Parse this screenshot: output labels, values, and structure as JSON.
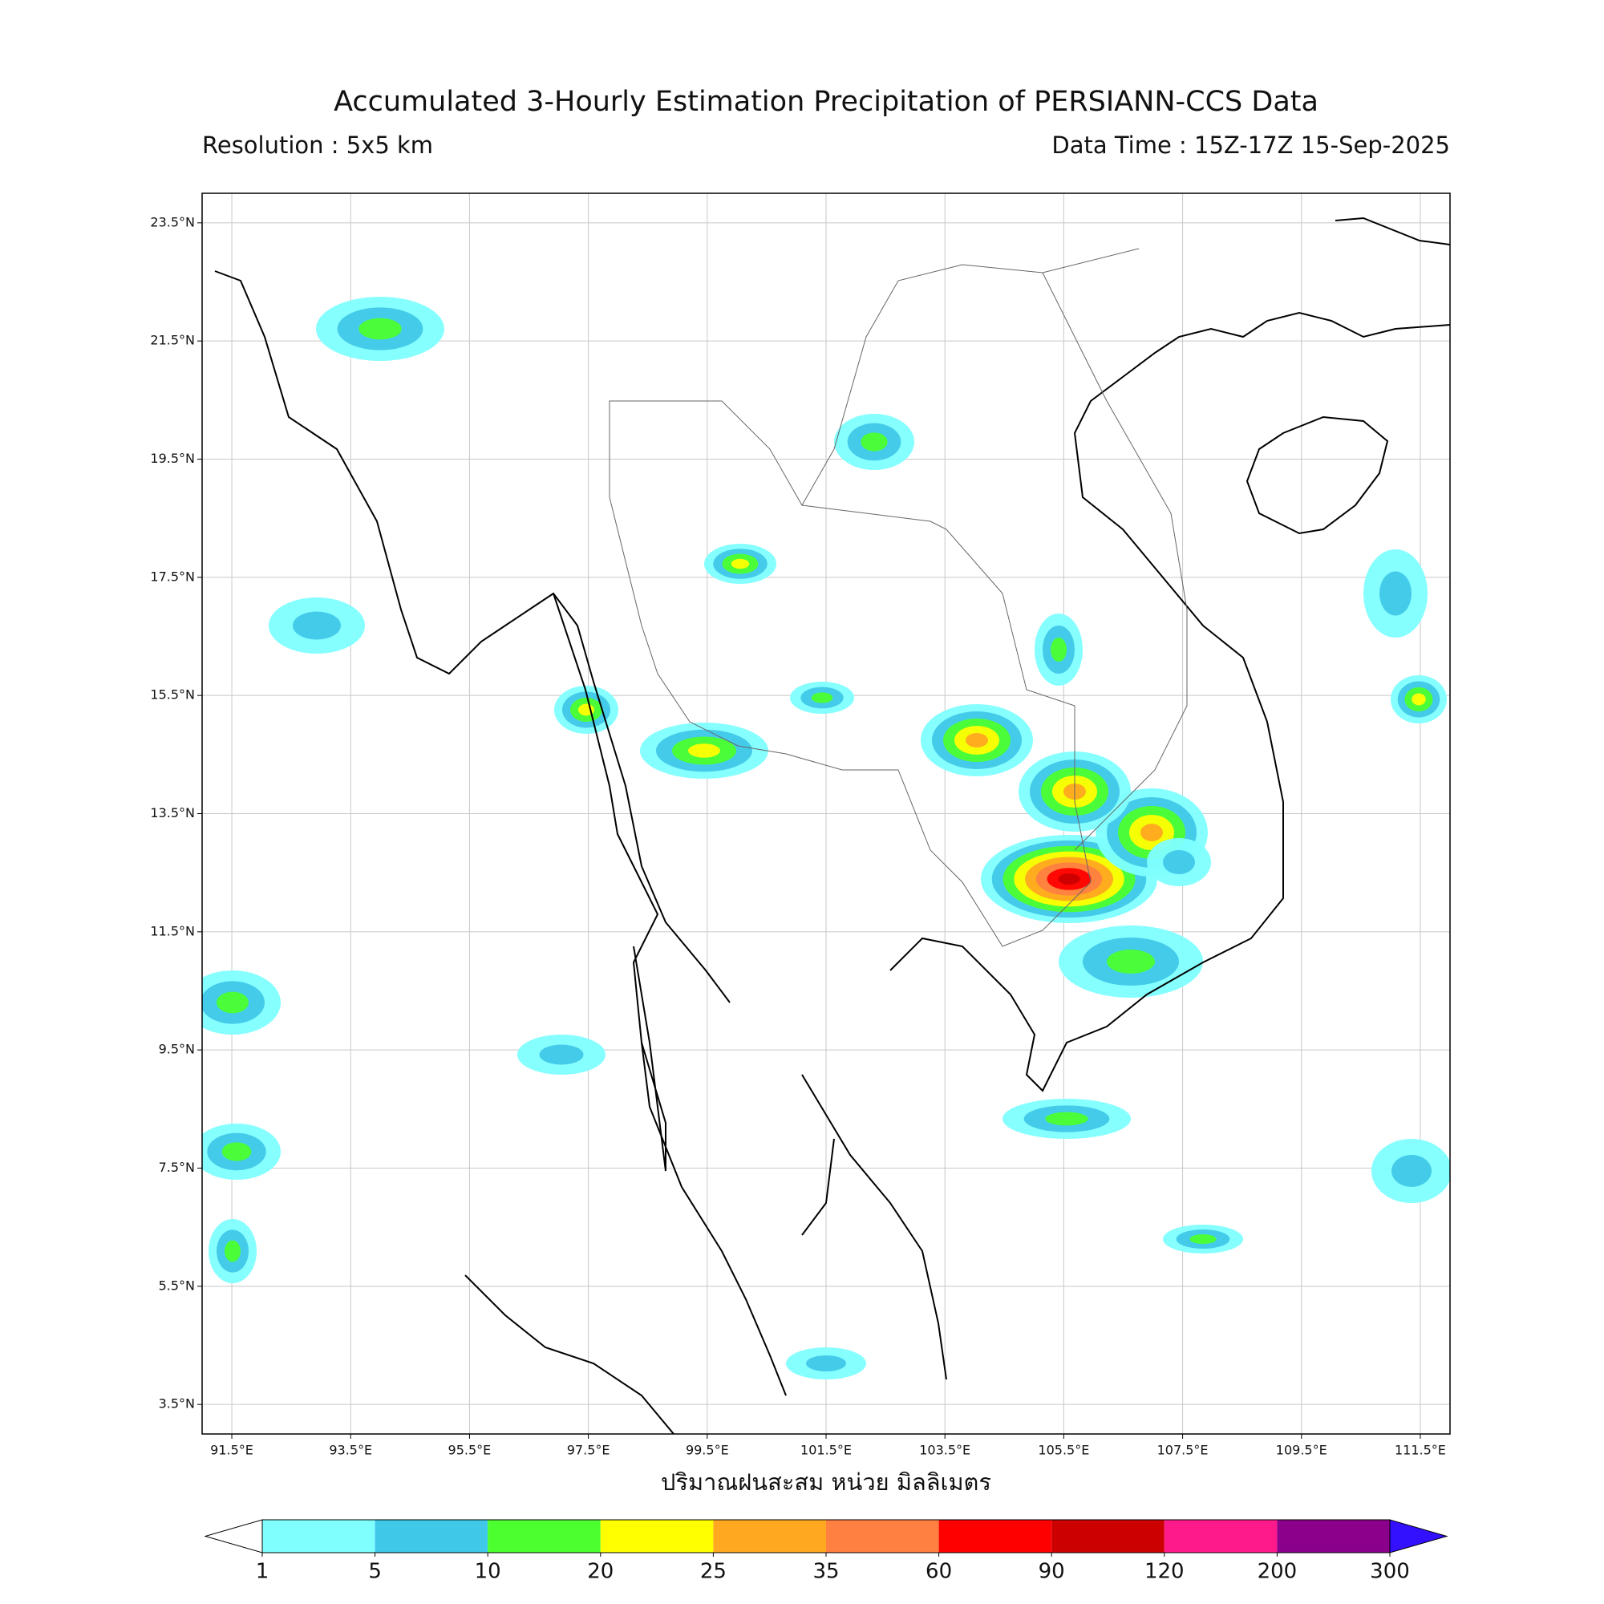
{
  "header": {
    "title": "Accumulated 3-Hourly Estimation Precipitation of PERSIANN-CCS Data",
    "resolution": "Resolution : 5x5 km",
    "data_time": "Data Time : 15Z-17Z 15-Sep-2025"
  },
  "map": {
    "lon_lim": [
      91.0,
      112.0
    ],
    "lat_lim": [
      3.0,
      24.0
    ],
    "lat_ticks": [
      {
        "value": 23.5,
        "label": "23.5°N"
      },
      {
        "value": 21.5,
        "label": "21.5°N"
      },
      {
        "value": 19.5,
        "label": "19.5°N"
      },
      {
        "value": 17.5,
        "label": "17.5°N"
      },
      {
        "value": 15.5,
        "label": "15.5°N"
      },
      {
        "value": 13.5,
        "label": "13.5°N"
      },
      {
        "value": 11.5,
        "label": "11.5°N"
      },
      {
        "value": 9.5,
        "label": "9.5°N"
      },
      {
        "value": 7.5,
        "label": "7.5°N"
      },
      {
        "value": 5.5,
        "label": "5.5°N"
      },
      {
        "value": 3.5,
        "label": "3.5°N"
      }
    ],
    "lon_ticks": [
      {
        "value": 91.5,
        "label": "91.5°E"
      },
      {
        "value": 93.5,
        "label": "93.5°E"
      },
      {
        "value": 95.5,
        "label": "95.5°E"
      },
      {
        "value": 97.5,
        "label": "97.5°E"
      },
      {
        "value": 99.5,
        "label": "99.5°E"
      },
      {
        "value": 101.5,
        "label": "101.5°E"
      },
      {
        "value": 103.5,
        "label": "103.5°E"
      },
      {
        "value": 105.5,
        "label": "105.5°E"
      },
      {
        "value": 107.5,
        "label": "107.5°E"
      },
      {
        "value": 109.5,
        "label": "109.5°E"
      },
      {
        "value": 111.5,
        "label": "111.5°E"
      }
    ],
    "xlabel": "ปริมาณฝนสะสม หน่วย มิลลิเมตร"
  },
  "colorbar": {
    "ticks": [
      1,
      5,
      10,
      20,
      25,
      35,
      60,
      90,
      120,
      200,
      300
    ],
    "colors": [
      "#80ffff",
      "#40c8e8",
      "#4cff2f",
      "#ffff00",
      "#ffa820",
      "#ff8040",
      "#ff0000",
      "#cc0000",
      "#ff1a8c",
      "#8b008b"
    ],
    "under_color": "#ffffff",
    "over_color": "#3311ff"
  }
}
